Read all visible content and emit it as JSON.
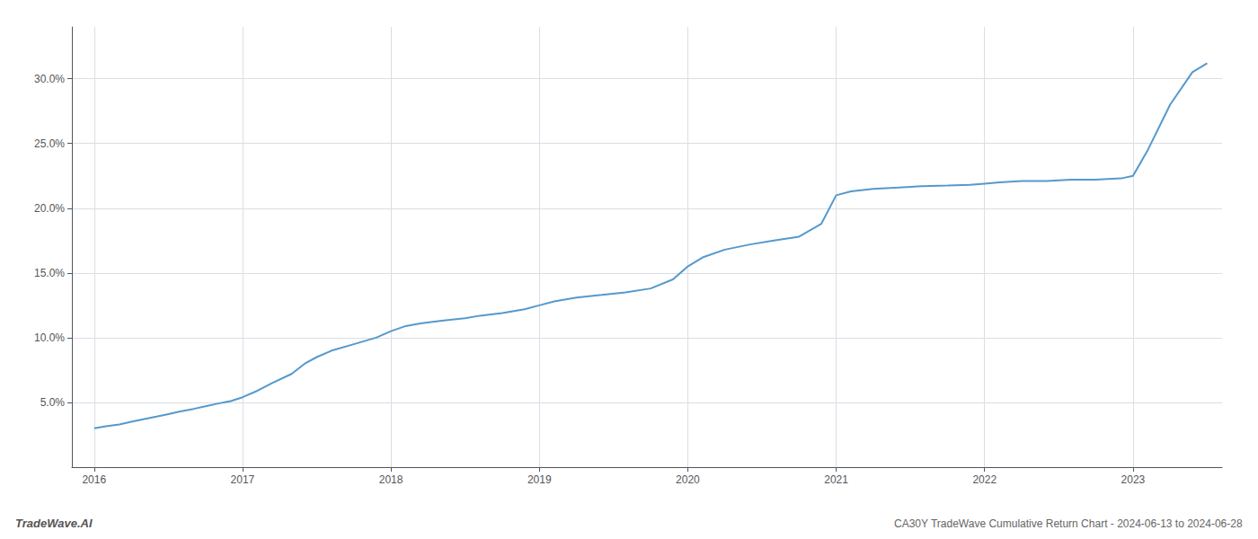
{
  "chart_data": {
    "type": "line",
    "title": "CA30Y TradeWave Cumulative Return Chart - 2024-06-13 to 2024-06-28",
    "annotations": [
      "TradeWave.AI"
    ],
    "color": "#5599cc",
    "grid": true,
    "x": [
      2016.0,
      2016.08,
      2016.17,
      2016.25,
      2016.33,
      2016.42,
      2016.5,
      2016.58,
      2016.67,
      2016.75,
      2016.83,
      2016.92,
      2017.0,
      2017.1,
      2017.2,
      2017.33,
      2017.42,
      2017.5,
      2017.6,
      2017.75,
      2017.9,
      2018.0,
      2018.1,
      2018.2,
      2018.33,
      2018.5,
      2018.6,
      2018.75,
      2018.9,
      2019.0,
      2019.1,
      2019.25,
      2019.42,
      2019.58,
      2019.75,
      2019.9,
      2020.0,
      2020.1,
      2020.25,
      2020.42,
      2020.58,
      2020.75,
      2020.9,
      2021.0,
      2021.1,
      2021.25,
      2021.42,
      2021.58,
      2021.75,
      2021.9,
      2022.0,
      2022.1,
      2022.25,
      2022.42,
      2022.58,
      2022.75,
      2022.83,
      2022.92,
      2023.0,
      2023.1,
      2023.25,
      2023.4,
      2023.5
    ],
    "values": [
      3.0,
      3.15,
      3.3,
      3.5,
      3.7,
      3.9,
      4.1,
      4.3,
      4.5,
      4.7,
      4.9,
      5.1,
      5.4,
      5.9,
      6.5,
      7.2,
      8.0,
      8.5,
      9.0,
      9.5,
      10.0,
      10.5,
      10.9,
      11.1,
      11.3,
      11.5,
      11.7,
      11.9,
      12.2,
      12.5,
      12.8,
      13.1,
      13.3,
      13.5,
      13.8,
      14.5,
      15.5,
      16.2,
      16.8,
      17.2,
      17.5,
      17.8,
      18.8,
      21.0,
      21.3,
      21.5,
      21.6,
      21.7,
      21.75,
      21.8,
      21.9,
      22.0,
      22.1,
      22.1,
      22.2,
      22.2,
      22.25,
      22.3,
      22.5,
      24.5,
      28.0,
      30.5,
      31.2
    ],
    "xlim": [
      2015.85,
      2023.6
    ],
    "xticks": [
      2016,
      2017,
      2018,
      2019,
      2020,
      2021,
      2022,
      2023
    ],
    "ylim": [
      0,
      34
    ],
    "yticks": [
      {
        "value": 5.0,
        "label": "5.0%"
      },
      {
        "value": 10.0,
        "label": "10.0%"
      },
      {
        "value": 15.0,
        "label": "15.0%"
      },
      {
        "value": 20.0,
        "label": "20.0%"
      },
      {
        "value": 25.0,
        "label": "25.0%"
      },
      {
        "value": 30.0,
        "label": "30.0%"
      }
    ]
  }
}
